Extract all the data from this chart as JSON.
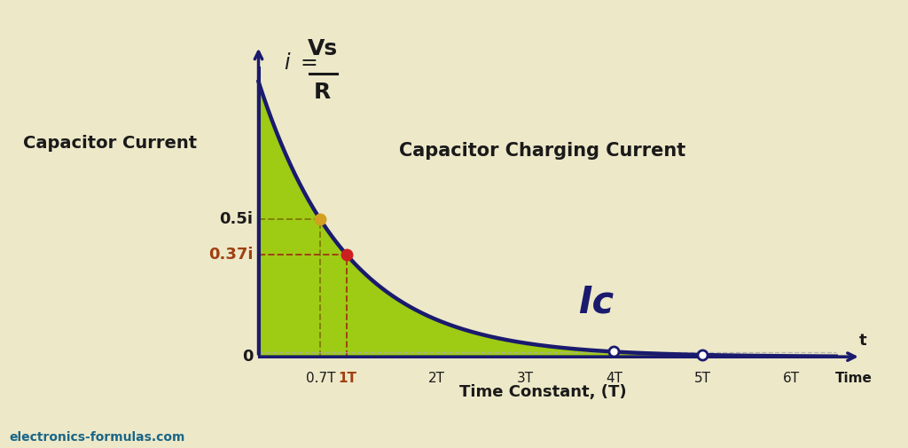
{
  "background_color": "#ede8c8",
  "curve_color": "#1a1a6e",
  "fill_color": "#96c800",
  "fill_alpha": 0.9,
  "axis_color": "#1a1a6e",
  "title_text": "Capacitor Charging Current",
  "ic_label": "Ic",
  "ylabel_text": "Capacitor Current",
  "xlabel_text": "Time Constant, (T)",
  "point_05_label": "0.5i",
  "point_037_label": "0.37i",
  "origin_label": "0",
  "t_label": "t",
  "time_label": "Time",
  "tick_labels": [
    "0.7T",
    "1T",
    "2T",
    "3T",
    "4T",
    "5T",
    "6T"
  ],
  "tick_positions": [
    0.7,
    1.0,
    2.0,
    3.0,
    4.0,
    5.0,
    6.0
  ],
  "x_max": 6.5,
  "y_max": 1.0,
  "dot_color_05": "#d4a020",
  "dot_color_037": "#cc2020",
  "dot_open_color": "#ffffff",
  "dashed_green": "#808000",
  "dashed_brown": "#a04010",
  "watermark": "electronics-formulas.com",
  "watermark_color": "#1a6688",
  "formula_color": "#1a1a1a",
  "label_color": "#1a1a1a"
}
